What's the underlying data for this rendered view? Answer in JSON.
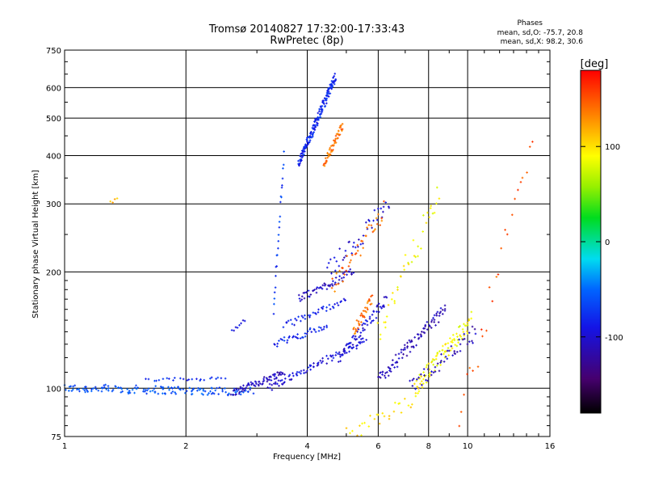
{
  "chart_data": {
    "type": "scatter",
    "title": "Tromsø 20140827 17:32:00-17:33:43",
    "subtitle": "RwPretec (8p)",
    "xlabel": "Frequency [MHz]",
    "ylabel": "Stationary phase Virtual Height [km]",
    "x_scale": "log",
    "y_scale": "log",
    "xlim": [
      1,
      16
    ],
    "ylim": [
      75,
      750
    ],
    "xticks": [
      1,
      2,
      4,
      6,
      8,
      10,
      16
    ],
    "xtick_labels": [
      "1",
      "2",
      "4",
      "6",
      "8",
      "10",
      "16"
    ],
    "yticks": [
      75,
      100,
      200,
      300,
      400,
      500,
      600,
      750
    ],
    "ytick_labels": [
      "75",
      "100",
      "200",
      "300",
      "400",
      "500",
      "600",
      "750"
    ],
    "grid": true,
    "stats": {
      "heading": "Phases",
      "line1": "mean, sd,O: -75.7, 20.8",
      "line2": "mean, sd,X:  98.2, 30.6"
    },
    "colorbar": {
      "label": "[deg]",
      "range": [
        -180,
        180
      ],
      "tick_values": [
        100,
        0,
        -100
      ],
      "tick_labels": [
        "100",
        "0",
        "-100"
      ]
    },
    "series": [
      {
        "f0": 1.0,
        "f1": 2.9,
        "h0": 100,
        "h1": 98,
        "phase": -60,
        "n": 150,
        "spread": 0.025
      },
      {
        "f0": 1.6,
        "f1": 2.5,
        "h0": 105,
        "h1": 106,
        "phase": -75,
        "n": 25,
        "spread": 0.01
      },
      {
        "f0": 2.6,
        "f1": 3.5,
        "h0": 97,
        "h1": 110,
        "phase": -110,
        "n": 70,
        "spread": 0.02
      },
      {
        "f0": 3.2,
        "f1": 5.6,
        "h0": 100,
        "h1": 133,
        "phase": -95,
        "n": 90,
        "spread": 0.02
      },
      {
        "f0": 3.8,
        "f1": 4.7,
        "h0": 380,
        "h1": 640,
        "phase": -80,
        "n": 170,
        "spread": 0.03
      },
      {
        "f0": 4.4,
        "f1": 4.9,
        "h0": 380,
        "h1": 480,
        "phase": 140,
        "n": 50,
        "spread": 0.025
      },
      {
        "f0": 3.3,
        "f1": 4.5,
        "h0": 130,
        "h1": 145,
        "phase": -80,
        "n": 40,
        "spread": 0.02
      },
      {
        "f0": 3.5,
        "f1": 5.0,
        "h0": 145,
        "h1": 170,
        "phase": -85,
        "n": 40,
        "spread": 0.02
      },
      {
        "f0": 3.8,
        "f1": 5.2,
        "h0": 170,
        "h1": 200,
        "phase": -105,
        "n": 55,
        "spread": 0.025
      },
      {
        "f0": 4.8,
        "f1": 6.3,
        "h0": 120,
        "h1": 170,
        "phase": -100,
        "n": 60,
        "spread": 0.03
      },
      {
        "f0": 5.2,
        "f1": 5.8,
        "h0": 140,
        "h1": 170,
        "phase": 140,
        "n": 35,
        "spread": 0.03
      },
      {
        "f0": 6.0,
        "f1": 8.8,
        "h0": 105,
        "h1": 160,
        "phase": -110,
        "n": 90,
        "spread": 0.04
      },
      {
        "f0": 7.4,
        "f1": 10.2,
        "h0": 100,
        "h1": 150,
        "phase": 90,
        "n": 90,
        "spread": 0.05
      },
      {
        "f0": 7.2,
        "f1": 10.5,
        "h0": 100,
        "h1": 140,
        "phase": -110,
        "n": 50,
        "spread": 0.05
      },
      {
        "f0": 3.3,
        "f1": 3.5,
        "h0": 160,
        "h1": 400,
        "phase": -70,
        "n": 25,
        "spread": 0.03
      },
      {
        "f0": 4.5,
        "f1": 6.4,
        "h0": 200,
        "h1": 300,
        "phase": -100,
        "n": 40,
        "spread": 0.06
      },
      {
        "f0": 4.6,
        "f1": 6.2,
        "h0": 180,
        "h1": 290,
        "phase": 140,
        "n": 40,
        "spread": 0.06
      },
      {
        "f0": 6.0,
        "f1": 8.5,
        "h0": 140,
        "h1": 320,
        "phase": 90,
        "n": 40,
        "spread": 0.08
      },
      {
        "f0": 5.0,
        "f1": 7.5,
        "h0": 75,
        "h1": 95,
        "phase": 100,
        "n": 30,
        "spread": 0.05
      },
      {
        "f0": 9.5,
        "f1": 14.5,
        "h0": 80,
        "h1": 460,
        "phase": 150,
        "n": 25,
        "spread": 0.1
      },
      {
        "f0": 1.3,
        "f1": 1.35,
        "h0": 300,
        "h1": 310,
        "phase": 110,
        "n": 4,
        "spread": 0.02
      },
      {
        "f0": 2.6,
        "f1": 2.8,
        "h0": 140,
        "h1": 150,
        "phase": -90,
        "n": 8,
        "spread": 0.01
      }
    ]
  }
}
